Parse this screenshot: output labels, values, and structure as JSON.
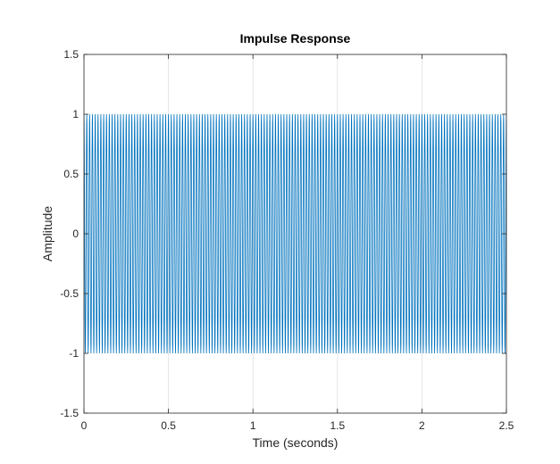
{
  "chart_data": {
    "type": "line",
    "title": "Impulse Response",
    "xlabel": "Time (seconds)",
    "ylabel": "Amplitude",
    "xlim": [
      0,
      2.5
    ],
    "ylim": [
      -1.5,
      1.5
    ],
    "xticks": [
      0,
      0.5,
      1,
      1.5,
      2,
      2.5
    ],
    "xtick_labels": [
      "0",
      "0.5",
      "1",
      "1.5",
      "2",
      "2.5"
    ],
    "yticks": [
      -1.5,
      -1,
      -0.5,
      0,
      0.5,
      1,
      1.5
    ],
    "ytick_labels": [
      "-1.5",
      "-1",
      "-0.5",
      "0",
      "0.5",
      "1",
      "1.5"
    ],
    "grid": true,
    "series": [
      {
        "color": "#0072BD",
        "signal": {
          "form": "cosine",
          "amplitude": 1,
          "frequency_hz": 60,
          "t_start": 0,
          "t_end": 2.5
        }
      }
    ]
  }
}
